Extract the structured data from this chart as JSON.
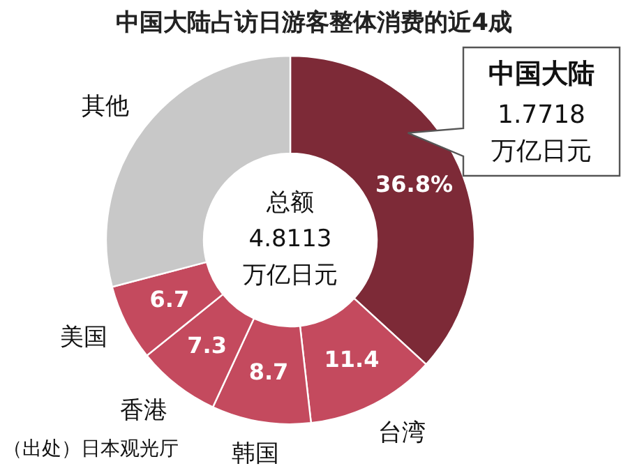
{
  "chart_data": {
    "type": "donut",
    "title": "中国大陆占访日游客整体消费的近4成",
    "categories": [
      "中国大陆",
      "台湾",
      "韩国",
      "香港",
      "美国",
      "其他"
    ],
    "values": [
      36.8,
      11.4,
      8.7,
      7.3,
      6.7,
      29.1
    ],
    "value_labels": [
      "36.8%",
      "11.4",
      "8.7",
      "7.3",
      "6.7",
      null
    ],
    "colors": [
      "#7d2a37",
      "#c44a5e",
      "#c44a5e",
      "#c44a5e",
      "#c44a5e",
      "#c8c8c8"
    ],
    "annotations": [
      "总额 4.8113 万亿日元",
      "1.7718 万亿日元",
      "（出处）日本观光厅"
    ]
  }
}
